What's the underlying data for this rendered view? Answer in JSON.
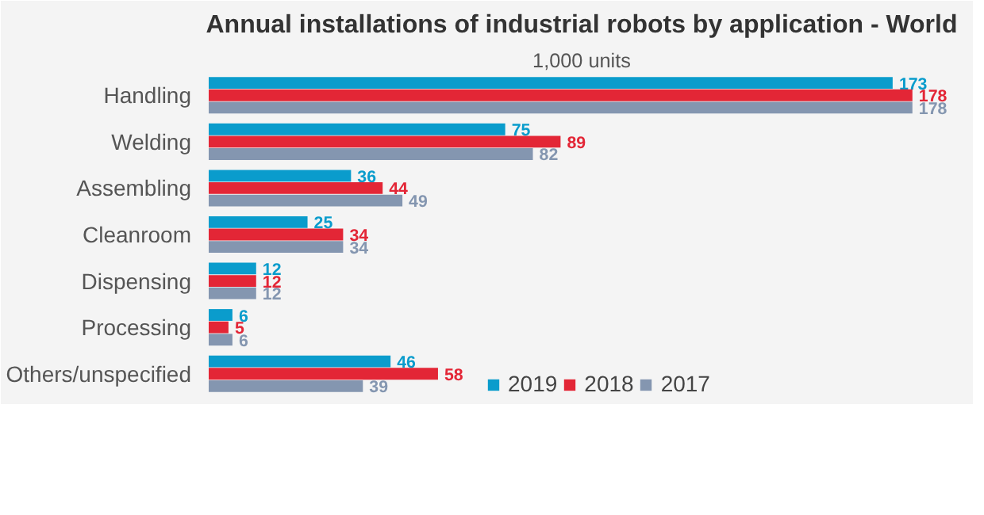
{
  "chart_data": {
    "type": "bar",
    "orientation": "horizontal",
    "title": "Annual installations of industrial robots by application - World",
    "subtitle": "1,000 units",
    "categories": [
      "Handling",
      "Welding",
      "Assembling",
      "Cleanroom",
      "Dispensing",
      "Processing",
      "Others/unspecified"
    ],
    "series": [
      {
        "name": "2019",
        "color": "#0a9ccc",
        "values": [
          173,
          75,
          36,
          25,
          12,
          6,
          46
        ]
      },
      {
        "name": "2018",
        "color": "#e32636",
        "values": [
          178,
          89,
          44,
          34,
          12,
          5,
          58
        ]
      },
      {
        "name": "2017",
        "color": "#8496b0",
        "values": [
          178,
          82,
          49,
          34,
          12,
          6,
          39
        ]
      }
    ],
    "data_labels": true,
    "legend": "bottom",
    "grid": false
  }
}
